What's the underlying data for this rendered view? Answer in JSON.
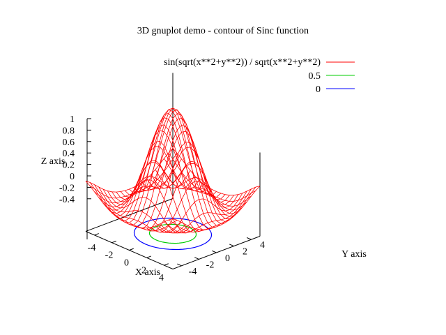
{
  "chart_data": {
    "type": "surface3d",
    "title": "3D gnuplot demo - contour of Sinc function",
    "xlabel": "X axis",
    "ylabel": "Y axis",
    "zlabel": "Z axis",
    "xlim": [
      -5,
      5
    ],
    "ylim": [
      -5,
      5
    ],
    "zlim": [
      -0.5,
      1
    ],
    "x_ticks": [
      "-4",
      "-2",
      "0",
      "2",
      "4"
    ],
    "y_ticks": [
      "-4",
      "-2",
      "0",
      "2",
      "4"
    ],
    "z_ticks": [
      "1",
      "0.8",
      "0.6",
      "0.4",
      "0.2",
      "0",
      "-0.2",
      "-0.4"
    ],
    "function": "sin(sqrt(x**2+y**2)) / sqrt(x**2+y**2)",
    "grid_samples": 21,
    "contour_levels": [
      0.5,
      0
    ],
    "legend_position": "top-right",
    "series": [
      {
        "name": "sin(sqrt(x**2+y**2)) / sqrt(x**2+y**2)",
        "kind": "surface",
        "color": "#ff0000"
      },
      {
        "name": "0.5",
        "kind": "contour",
        "level": 0.5,
        "color": "#00cc00"
      },
      {
        "name": "0",
        "kind": "contour",
        "level": 0,
        "color": "#0000ff"
      }
    ]
  }
}
